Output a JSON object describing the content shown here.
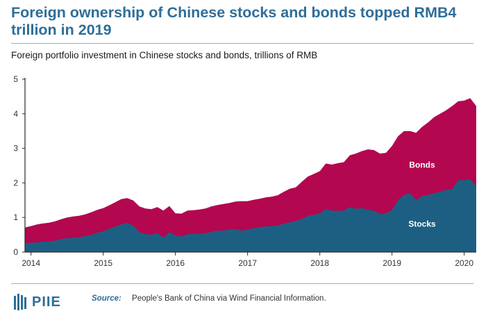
{
  "title": "Foreign ownership of Chinese stocks and bonds topped RMB4 trillion in 2019",
  "subtitle": "Foreign portfolio investment in Chinese stocks and bonds, trillions of RMB",
  "source_label": "Source:",
  "source_text": "People's Bank of China via Wind Financial Information.",
  "logo_text": "PIIE",
  "colors": {
    "stocks": "#1d5f82",
    "bonds": "#b3074f",
    "title": "#2e6e99",
    "axis": "#2a2a2a"
  },
  "chart_data": {
    "type": "area",
    "stacked": true,
    "ylim": [
      0,
      5
    ],
    "y_ticks": [
      "0",
      "1",
      "2",
      "3",
      "4",
      "5"
    ],
    "x_range": [
      "2013-12",
      "2020-03"
    ],
    "x_ticks": [
      "2014",
      "2015",
      "2016",
      "2017",
      "2018",
      "2019",
      "2020"
    ],
    "grid": false,
    "x": [
      "2013-12",
      "2014-01",
      "2014-02",
      "2014-03",
      "2014-04",
      "2014-05",
      "2014-06",
      "2014-07",
      "2014-08",
      "2014-09",
      "2014-10",
      "2014-11",
      "2014-12",
      "2015-01",
      "2015-02",
      "2015-03",
      "2015-04",
      "2015-05",
      "2015-06",
      "2015-07",
      "2015-08",
      "2015-09",
      "2015-10",
      "2015-11",
      "2015-12",
      "2016-01",
      "2016-02",
      "2016-03",
      "2016-04",
      "2016-05",
      "2016-06",
      "2016-07",
      "2016-08",
      "2016-09",
      "2016-10",
      "2016-11",
      "2016-12",
      "2017-01",
      "2017-02",
      "2017-03",
      "2017-04",
      "2017-05",
      "2017-06",
      "2017-07",
      "2017-08",
      "2017-09",
      "2017-10",
      "2017-11",
      "2017-12",
      "2018-01",
      "2018-02",
      "2018-03",
      "2018-04",
      "2018-05",
      "2018-06",
      "2018-07",
      "2018-08",
      "2018-09",
      "2018-10",
      "2018-11",
      "2018-12",
      "2019-01",
      "2019-02",
      "2019-03",
      "2019-04",
      "2019-05",
      "2019-06",
      "2019-07",
      "2019-08",
      "2019-09",
      "2019-10",
      "2019-11",
      "2019-12",
      "2020-01",
      "2020-02",
      "2020-03"
    ],
    "series": [
      {
        "name": "Stocks",
        "values": [
          0.26,
          0.27,
          0.28,
          0.3,
          0.31,
          0.33,
          0.38,
          0.4,
          0.41,
          0.43,
          0.46,
          0.5,
          0.56,
          0.6,
          0.67,
          0.74,
          0.8,
          0.84,
          0.77,
          0.58,
          0.52,
          0.5,
          0.55,
          0.42,
          0.58,
          0.48,
          0.45,
          0.52,
          0.52,
          0.53,
          0.55,
          0.58,
          0.62,
          0.62,
          0.65,
          0.66,
          0.62,
          0.65,
          0.69,
          0.72,
          0.74,
          0.75,
          0.77,
          0.82,
          0.86,
          0.9,
          0.96,
          1.05,
          1.08,
          1.12,
          1.24,
          1.2,
          1.19,
          1.2,
          1.3,
          1.25,
          1.27,
          1.22,
          1.2,
          1.1,
          1.12,
          1.22,
          1.5,
          1.65,
          1.7,
          1.5,
          1.62,
          1.65,
          1.7,
          1.75,
          1.8,
          1.82,
          2.08,
          2.08,
          2.1,
          1.9
        ]
      },
      {
        "name": "Bonds",
        "values": [
          0.45,
          0.48,
          0.52,
          0.53,
          0.54,
          0.56,
          0.57,
          0.6,
          0.62,
          0.62,
          0.63,
          0.65,
          0.66,
          0.67,
          0.68,
          0.7,
          0.73,
          0.72,
          0.72,
          0.74,
          0.74,
          0.74,
          0.75,
          0.78,
          0.75,
          0.64,
          0.66,
          0.68,
          0.69,
          0.7,
          0.71,
          0.74,
          0.74,
          0.77,
          0.77,
          0.8,
          0.85,
          0.82,
          0.82,
          0.82,
          0.84,
          0.85,
          0.87,
          0.92,
          0.97,
          0.97,
          1.07,
          1.13,
          1.18,
          1.22,
          1.32,
          1.33,
          1.38,
          1.4,
          1.5,
          1.6,
          1.65,
          1.75,
          1.75,
          1.75,
          1.75,
          1.85,
          1.85,
          1.85,
          1.8,
          1.95,
          2.0,
          2.1,
          2.2,
          2.25,
          2.3,
          2.4,
          2.28,
          2.3,
          2.35,
          2.32
        ]
      }
    ]
  }
}
